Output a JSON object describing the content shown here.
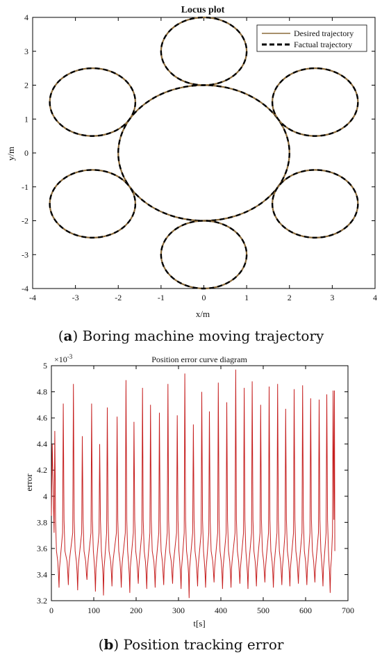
{
  "chart_data": [
    {
      "type": "line",
      "title": "Locus plot",
      "xlabel": "x/m",
      "ylabel": "y/m",
      "xlim": [
        -4,
        4
      ],
      "ylim": [
        -4,
        4
      ],
      "xticks": [
        -4,
        -3,
        -2,
        -1,
        0,
        1,
        2,
        3,
        4
      ],
      "yticks": [
        -4,
        -3,
        -2,
        -1,
        0,
        1,
        2,
        3,
        4
      ],
      "legend_position": "top-right",
      "series": [
        {
          "name": "Desired trajectory",
          "color": "#8a6a3a",
          "style": "solid"
        },
        {
          "name": "Factual trajectory",
          "color": "#000000",
          "style": "dashed"
        }
      ],
      "circles": [
        {
          "cx": 0,
          "cy": 0,
          "r": 2
        },
        {
          "cx": 0,
          "cy": 3,
          "r": 1
        },
        {
          "cx": 0,
          "cy": -3,
          "r": 1
        },
        {
          "cx": 2.6,
          "cy": 1.5,
          "r": 1
        },
        {
          "cx": -2.6,
          "cy": 1.5,
          "r": 1
        },
        {
          "cx": 2.6,
          "cy": -1.5,
          "r": 1
        },
        {
          "cx": -2.6,
          "cy": -1.5,
          "r": 1
        }
      ],
      "caption_label": "a",
      "caption_text": "Boring machine moving trajectory"
    },
    {
      "type": "line",
      "title": "Position error curve diagram",
      "xlabel": "t[s]",
      "ylabel": "error",
      "y_multiplier": "×10",
      "y_multiplier_exp": "-3",
      "xlim": [
        0,
        700
      ],
      "ylim": [
        3.2,
        5.0
      ],
      "xticks": [
        0,
        100,
        200,
        300,
        400,
        500,
        600,
        700
      ],
      "yticks": [
        "3.2",
        "3.4",
        "3.6",
        "3.8",
        "4",
        "4.2",
        "4.4",
        "4.6",
        "4.8",
        "5"
      ],
      "line_color": "#c62020",
      "peaks": [
        {
          "t": 8,
          "v": 4.5
        },
        {
          "t": 28,
          "v": 4.71
        },
        {
          "t": 52,
          "v": 4.86
        },
        {
          "t": 73,
          "v": 4.46
        },
        {
          "t": 95,
          "v": 4.71
        },
        {
          "t": 114,
          "v": 4.4
        },
        {
          "t": 132,
          "v": 4.68
        },
        {
          "t": 155,
          "v": 4.61
        },
        {
          "t": 176,
          "v": 4.89
        },
        {
          "t": 195,
          "v": 4.57
        },
        {
          "t": 215,
          "v": 4.83
        },
        {
          "t": 234,
          "v": 4.7
        },
        {
          "t": 255,
          "v": 4.64
        },
        {
          "t": 275,
          "v": 4.86
        },
        {
          "t": 297,
          "v": 4.62
        },
        {
          "t": 315,
          "v": 4.94
        },
        {
          "t": 335,
          "v": 4.55
        },
        {
          "t": 355,
          "v": 4.8
        },
        {
          "t": 373,
          "v": 4.65
        },
        {
          "t": 394,
          "v": 4.87
        },
        {
          "t": 414,
          "v": 4.72
        },
        {
          "t": 435,
          "v": 4.97
        },
        {
          "t": 455,
          "v": 4.83
        },
        {
          "t": 474,
          "v": 4.88
        },
        {
          "t": 494,
          "v": 4.7
        },
        {
          "t": 514,
          "v": 4.84
        },
        {
          "t": 534,
          "v": 4.86
        },
        {
          "t": 553,
          "v": 4.67
        },
        {
          "t": 573,
          "v": 4.82
        },
        {
          "t": 593,
          "v": 4.85
        },
        {
          "t": 612,
          "v": 4.75
        },
        {
          "t": 632,
          "v": 4.74
        },
        {
          "t": 650,
          "v": 4.78
        },
        {
          "t": 665,
          "v": 4.81
        }
      ],
      "troughs": [
        {
          "t": 18,
          "v": 3.3
        },
        {
          "t": 40,
          "v": 3.32
        },
        {
          "t": 62,
          "v": 3.28
        },
        {
          "t": 84,
          "v": 3.36
        },
        {
          "t": 104,
          "v": 3.27
        },
        {
          "t": 123,
          "v": 3.24
        },
        {
          "t": 143,
          "v": 3.31
        },
        {
          "t": 165,
          "v": 3.3
        },
        {
          "t": 185,
          "v": 3.26
        },
        {
          "t": 205,
          "v": 3.33
        },
        {
          "t": 225,
          "v": 3.29
        },
        {
          "t": 245,
          "v": 3.3
        },
        {
          "t": 265,
          "v": 3.32
        },
        {
          "t": 286,
          "v": 3.33
        },
        {
          "t": 306,
          "v": 3.29
        },
        {
          "t": 325,
          "v": 3.22
        },
        {
          "t": 345,
          "v": 3.31
        },
        {
          "t": 364,
          "v": 3.3
        },
        {
          "t": 384,
          "v": 3.34
        },
        {
          "t": 404,
          "v": 3.29
        },
        {
          "t": 424,
          "v": 3.3
        },
        {
          "t": 445,
          "v": 3.33
        },
        {
          "t": 464,
          "v": 3.29
        },
        {
          "t": 484,
          "v": 3.31
        },
        {
          "t": 504,
          "v": 3.34
        },
        {
          "t": 524,
          "v": 3.3
        },
        {
          "t": 544,
          "v": 3.32
        },
        {
          "t": 563,
          "v": 3.31
        },
        {
          "t": 583,
          "v": 3.33
        },
        {
          "t": 603,
          "v": 3.32
        },
        {
          "t": 622,
          "v": 3.34
        },
        {
          "t": 641,
          "v": 3.31
        },
        {
          "t": 658,
          "v": 3.26
        }
      ],
      "caption_label": "b",
      "caption_text": "Position tracking error"
    }
  ]
}
